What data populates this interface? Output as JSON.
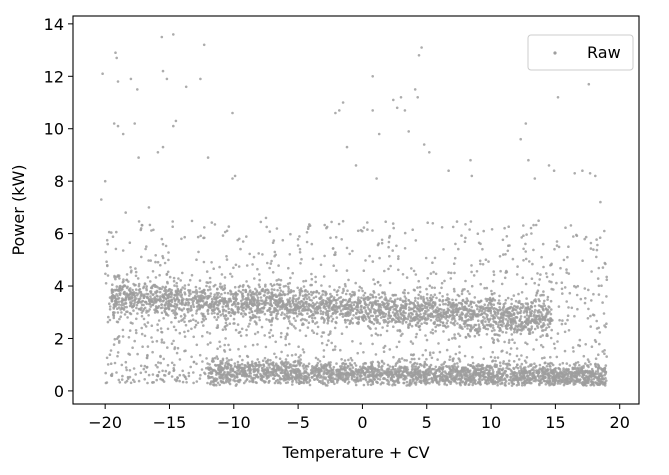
{
  "chart_data": {
    "type": "scatter",
    "title": "",
    "xlabel": "Temperature + CV",
    "ylabel": "Power (kW)",
    "xlim": [
      -22.5,
      21.5
    ],
    "ylim": [
      -0.5,
      14.3
    ],
    "x_ticks": [
      -20,
      -15,
      -10,
      -5,
      0,
      5,
      10,
      15,
      20
    ],
    "x_tick_labels": [
      "−20",
      "−15",
      "−10",
      "−5",
      "0",
      "5",
      "10",
      "15",
      "20"
    ],
    "y_ticks": [
      0,
      2,
      4,
      6,
      8,
      10,
      12,
      14
    ],
    "y_tick_labels": [
      "0",
      "2",
      "4",
      "6",
      "8",
      "10",
      "12",
      "14"
    ],
    "grid": false,
    "legend_position": "top-right",
    "series": [
      {
        "name": "Raw",
        "color": "#9e9e9e",
        "marker": "point",
        "bands": [
          {
            "label": "upper",
            "x_range": [
              -19.5,
              14.7
            ],
            "y_start": 3.6,
            "y_end": 2.8,
            "spread": 0.35,
            "points": 2600
          },
          {
            "label": "lower",
            "x_range": [
              -12.0,
              19.0
            ],
            "y_start": 0.75,
            "y_end": 0.55,
            "spread": 0.22,
            "points": 2200
          },
          {
            "label": "scatter",
            "x_range": [
              -20.0,
              19.0
            ],
            "y_range": [
              0.3,
              6.5
            ],
            "points": 1400
          }
        ],
        "outliers": [
          [
            -20.2,
            12.1
          ],
          [
            -20.0,
            8.0
          ],
          [
            -19.2,
            12.9
          ],
          [
            -19.1,
            12.7
          ],
          [
            -19.0,
            11.8
          ],
          [
            -19.3,
            10.2
          ],
          [
            -19.0,
            10.1
          ],
          [
            -18.6,
            9.8
          ],
          [
            -18.0,
            11.9
          ],
          [
            -17.5,
            11.5
          ],
          [
            -17.7,
            10.2
          ],
          [
            -17.4,
            8.9
          ],
          [
            -16.6,
            7.0
          ],
          [
            -15.6,
            13.5
          ],
          [
            -14.7,
            13.6
          ],
          [
            -15.5,
            12.2
          ],
          [
            -15.2,
            11.9
          ],
          [
            -15.5,
            9.3
          ],
          [
            -15.9,
            9.1
          ],
          [
            -14.5,
            10.3
          ],
          [
            -14.7,
            10.1
          ],
          [
            -13.7,
            11.6
          ],
          [
            -12.3,
            13.2
          ],
          [
            -12.6,
            11.9
          ],
          [
            -12.0,
            8.9
          ],
          [
            -10.1,
            10.6
          ],
          [
            -10.1,
            8.1
          ],
          [
            -9.9,
            8.2
          ],
          [
            -7.5,
            6.6
          ],
          [
            -2.1,
            10.6
          ],
          [
            -1.8,
            10.7
          ],
          [
            -1.5,
            11.0
          ],
          [
            -1.2,
            9.3
          ],
          [
            -0.5,
            8.6
          ],
          [
            0.8,
            12.0
          ],
          [
            0.8,
            10.7
          ],
          [
            1.3,
            9.8
          ],
          [
            1.1,
            8.1
          ],
          [
            2.4,
            11.1
          ],
          [
            2.7,
            10.8
          ],
          [
            3.0,
            11.2
          ],
          [
            3.3,
            10.7
          ],
          [
            3.6,
            9.9
          ],
          [
            4.1,
            11.5
          ],
          [
            4.3,
            11.2
          ],
          [
            4.6,
            13.1
          ],
          [
            4.4,
            12.8
          ],
          [
            4.8,
            9.4
          ],
          [
            5.2,
            9.1
          ],
          [
            6.7,
            8.4
          ],
          [
            8.4,
            8.8
          ],
          [
            8.5,
            8.2
          ],
          [
            12.3,
            9.6
          ],
          [
            12.7,
            10.2
          ],
          [
            12.9,
            8.8
          ],
          [
            13.4,
            8.1
          ],
          [
            14.5,
            8.6
          ],
          [
            14.9,
            8.4
          ],
          [
            15.2,
            11.2
          ],
          [
            16.5,
            8.3
          ],
          [
            17.1,
            8.4
          ],
          [
            17.6,
            11.7
          ],
          [
            17.7,
            8.3
          ],
          [
            18.1,
            8.2
          ],
          [
            18.5,
            7.2
          ],
          [
            18.8,
            6.1
          ],
          [
            -20.3,
            7.3
          ],
          [
            -19.8,
            5.6
          ],
          [
            -18.4,
            6.8
          ],
          [
            -17.2,
            6.2
          ],
          [
            -15.9,
            0.6
          ],
          [
            -15.4,
            0.6
          ],
          [
            -14.8,
            0.55
          ],
          [
            -14.2,
            0.6
          ],
          [
            -13.9,
            0.6
          ],
          [
            -12.6,
            0.6
          ],
          [
            -18.0,
            2.6
          ],
          [
            -17.7,
            1.9
          ],
          [
            -16.9,
            2.1
          ],
          [
            -15.7,
            1.3
          ],
          [
            -14.6,
            1.6
          ],
          [
            -14.2,
            2.2
          ],
          [
            -13.1,
            1.1
          ]
        ]
      }
    ]
  }
}
